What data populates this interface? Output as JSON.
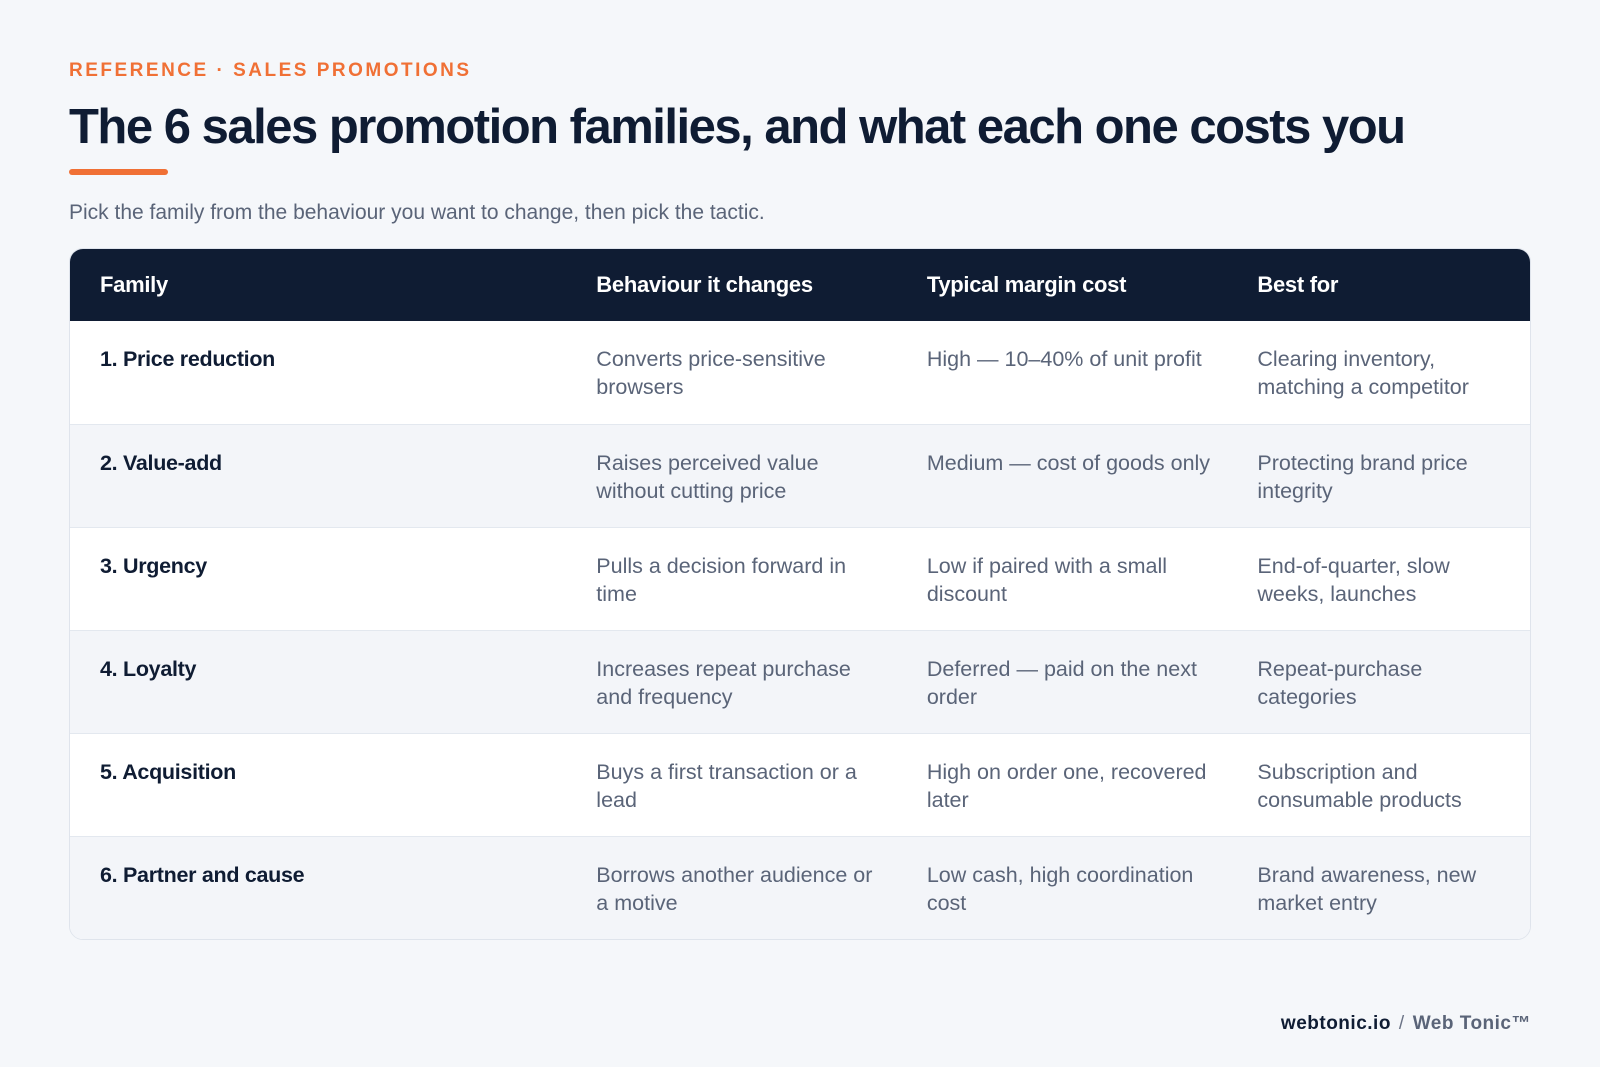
{
  "eyebrow": "REFERENCE · SALES PROMOTIONS",
  "title": "The 6 sales promotion families, and what each one costs you",
  "subtitle": "Pick the family from the behaviour you want to change, then pick the tactic.",
  "table": {
    "headers": [
      "Family",
      "Behaviour it changes",
      "Typical margin cost",
      "Best for"
    ],
    "rows": [
      [
        "1. Price reduction",
        "Converts price-sensitive browsers",
        "High — 10–40% of unit profit",
        "Clearing inventory, matching a competitor"
      ],
      [
        "2. Value-add",
        "Raises perceived value without cutting price",
        "Medium — cost of goods only",
        "Protecting brand price integrity"
      ],
      [
        "3. Urgency",
        "Pulls a decision forward in time",
        "Low if paired with a small discount",
        "End-of-quarter, slow weeks, launches"
      ],
      [
        "4. Loyalty",
        "Increases repeat purchase and frequency",
        "Deferred — paid on the next order",
        "Repeat-purchase categories"
      ],
      [
        "5. Acquisition",
        "Buys a first transaction or a lead",
        "High on order one, recovered later",
        "Subscription and consumable products"
      ],
      [
        "6. Partner and cause",
        "Borrows another audience or a motive",
        "Low cash, high coordination cost",
        "Brand awareness, new market entry"
      ]
    ]
  },
  "footer": {
    "site": "webtonic.io",
    "separator": "/",
    "brand": "Web Tonic™"
  },
  "colors": {
    "accent": "#f07035",
    "navy": "#0f1c33",
    "background": "#f5f7fa"
  }
}
